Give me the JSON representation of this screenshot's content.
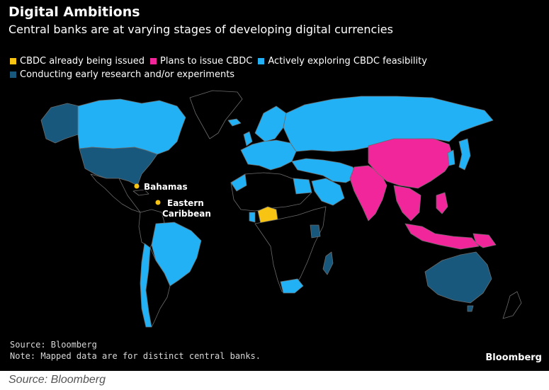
{
  "title": "Digital Ambitions",
  "subtitle": "Central banks are at varying stages of developing digital currencies",
  "legend": [
    {
      "label": "CBDC already being issued",
      "color": "#f7c414"
    },
    {
      "label": "Plans to issue CBDC",
      "color": "#f0269a"
    },
    {
      "label": "Actively exploring CBDC feasibility",
      "color": "#22b1f5"
    },
    {
      "label": "Conducting early research and/or experiments",
      "color": "#18587d"
    }
  ],
  "map_labels": {
    "bahamas": "Bahamas",
    "eastern_caribbean_line1": "Eastern",
    "eastern_caribbean_line2": "Caribbean"
  },
  "colors": {
    "background": "#000000",
    "land_other": "#000000",
    "border": "#6b6b6b"
  },
  "footer": {
    "source": "Source: Bloomberg",
    "note": "Note: Mapped data are for distinct central banks."
  },
  "brand": "Bloomberg",
  "caption": "Source: Bloomberg"
}
